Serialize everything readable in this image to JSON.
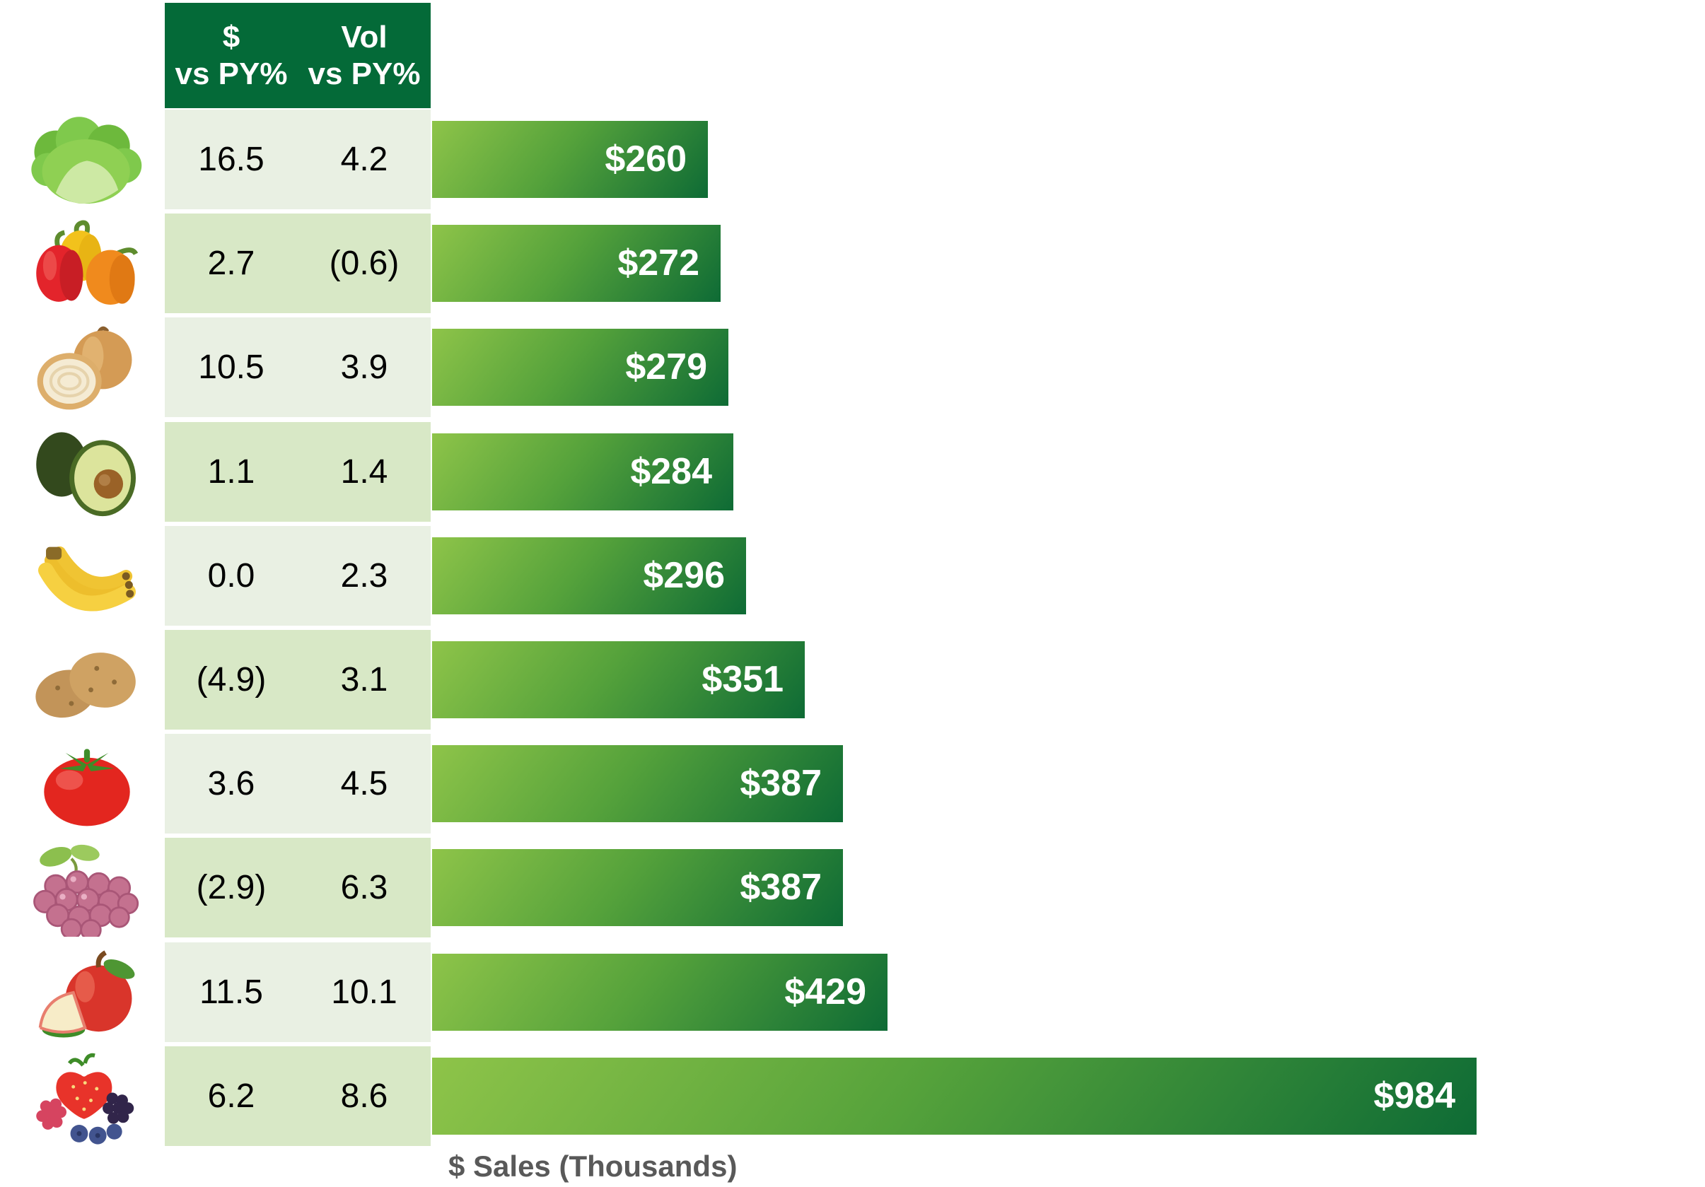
{
  "page": {
    "background": "#FFFFFF"
  },
  "header": {
    "bg_color": "#046A38",
    "text_color": "#FFFFFF",
    "cols": [
      {
        "line1": "$",
        "line2": "vs PY%"
      },
      {
        "line1": "Vol",
        "line2": "vs PY%"
      }
    ]
  },
  "colors": {
    "row_light": "#E9F0E3",
    "row_dark": "#D8E8C6",
    "bar_gradient_start": "#8EC449",
    "bar_gradient_end": "#0E6B35",
    "bar_label_text": "#FFFFFF",
    "cell_text": "#000000",
    "axis_label_text": "#595959"
  },
  "chart_data": {
    "type": "bar",
    "orientation": "horizontal",
    "title": "",
    "xlabel": "$ Sales (Thousands)",
    "ylabel": "",
    "grid": false,
    "legend": false,
    "categories": [
      "lettuce",
      "bell-peppers",
      "onions",
      "avocados",
      "bananas",
      "potatoes",
      "tomatoes",
      "grapes",
      "apples",
      "berries"
    ],
    "icons": [
      "lettuce-icon",
      "bell-peppers-icon",
      "onion-icon",
      "avocado-icon",
      "bananas-icon",
      "potatoes-icon",
      "tomato-icon",
      "grapes-icon",
      "apple-icon",
      "berries-icon"
    ],
    "values": [
      260,
      272,
      279,
      284,
      296,
      351,
      387,
      387,
      429,
      984
    ],
    "bar_labels": [
      "$260",
      "$272",
      "$279",
      "$284",
      "$296",
      "$351",
      "$387",
      "$387",
      "$429",
      "$984"
    ],
    "series": [
      {
        "name": "$ vs PY%",
        "values": [
          16.5,
          2.7,
          10.5,
          1.1,
          0.0,
          -4.9,
          3.6,
          -2.9,
          11.5,
          6.2
        ],
        "labels": [
          "16.5",
          "2.7",
          "10.5",
          "1.1",
          "0.0",
          "(4.9)",
          "3.6",
          "(2.9)",
          "11.5",
          "6.2"
        ]
      },
      {
        "name": "Vol vs PY%",
        "values": [
          4.2,
          -0.6,
          3.9,
          1.4,
          2.3,
          3.1,
          4.5,
          6.3,
          10.1,
          8.6
        ],
        "labels": [
          "4.2",
          "(0.6)",
          "3.9",
          "1.4",
          "2.3",
          "3.1",
          "4.5",
          "6.3",
          "10.1",
          "8.6"
        ]
      }
    ]
  }
}
